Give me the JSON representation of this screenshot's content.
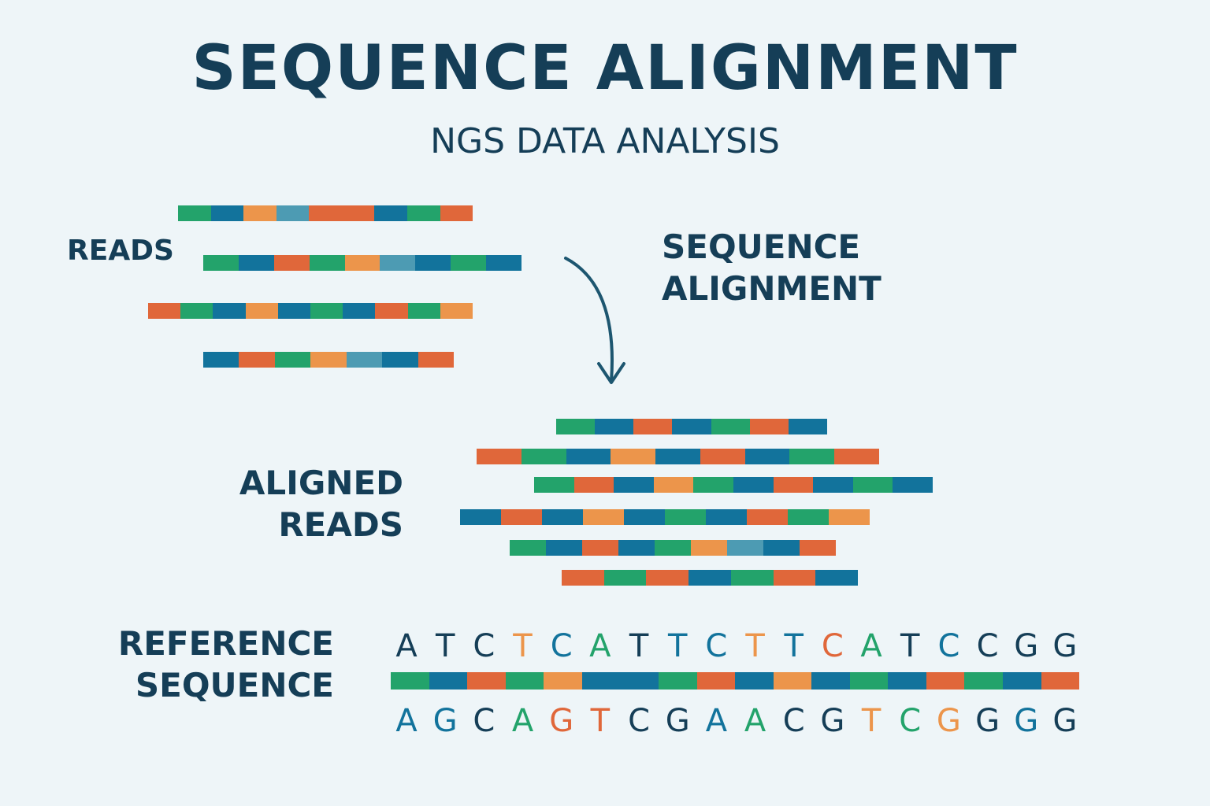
{
  "title": "SEQUENCE ALIGNMENT",
  "subtitle": "NGS DATA ANALYSIS",
  "labels": {
    "reads": "READS",
    "process_line1": "SEQUENCE",
    "process_line2": "ALIGNMENT",
    "aligned_line1": "ALIGNED",
    "aligned_line2": "READS",
    "reference_line1": "REFERENCE",
    "reference_line2": "SEQUENCE"
  },
  "colors": {
    "green": "#23a36b",
    "blue": "#12739c",
    "orange": "#e0673a",
    "light_orange": "#ec954b",
    "teal": "#4d9bb3",
    "navy": "#153e57",
    "background": "#eef5f8"
  },
  "reference_sequence": {
    "top_strand": [
      {
        "base": "A",
        "color": "navy"
      },
      {
        "base": "T",
        "color": "navy"
      },
      {
        "base": "C",
        "color": "navy"
      },
      {
        "base": "T",
        "color": "light_orange"
      },
      {
        "base": "C",
        "color": "blue"
      },
      {
        "base": "A",
        "color": "green"
      },
      {
        "base": "T",
        "color": "navy"
      },
      {
        "base": "T",
        "color": "blue"
      },
      {
        "base": "C",
        "color": "blue"
      },
      {
        "base": "T",
        "color": "light_orange"
      },
      {
        "base": "T",
        "color": "blue"
      },
      {
        "base": "C",
        "color": "orange"
      },
      {
        "base": "A",
        "color": "green"
      },
      {
        "base": "T",
        "color": "navy"
      },
      {
        "base": "C",
        "color": "blue"
      },
      {
        "base": "C",
        "color": "navy"
      },
      {
        "base": "G",
        "color": "navy"
      },
      {
        "base": "G",
        "color": "navy"
      }
    ],
    "bottom_strand": [
      {
        "base": "A",
        "color": "blue"
      },
      {
        "base": "G",
        "color": "blue"
      },
      {
        "base": "C",
        "color": "navy"
      },
      {
        "base": "A",
        "color": "green"
      },
      {
        "base": "G",
        "color": "orange"
      },
      {
        "base": "T",
        "color": "orange"
      },
      {
        "base": "C",
        "color": "navy"
      },
      {
        "base": "G",
        "color": "navy"
      },
      {
        "base": "A",
        "color": "blue"
      },
      {
        "base": "A",
        "color": "green"
      },
      {
        "base": "C",
        "color": "navy"
      },
      {
        "base": "G",
        "color": "navy"
      },
      {
        "base": "T",
        "color": "light_orange"
      },
      {
        "base": "C",
        "color": "green"
      },
      {
        "base": "G",
        "color": "light_orange"
      },
      {
        "base": "G",
        "color": "navy"
      },
      {
        "base": "G",
        "color": "blue"
      },
      {
        "base": "G",
        "color": "navy"
      }
    ],
    "bar_segments": [
      "green",
      "blue",
      "orange",
      "green",
      "light_orange",
      "blue",
      "blue",
      "green",
      "orange",
      "blue",
      "light_orange",
      "blue",
      "green",
      "blue",
      "orange",
      "green",
      "blue",
      "orange"
    ]
  },
  "unaligned_reads": [
    [
      "green",
      "blue",
      "light_orange",
      "teal",
      "orange",
      "orange",
      "blue",
      "green",
      "orange"
    ],
    [
      "green",
      "blue",
      "orange",
      "green",
      "light_orange",
      "teal",
      "blue",
      "green",
      "blue"
    ],
    [
      "orange",
      "green",
      "blue",
      "light_orange",
      "blue",
      "green",
      "blue",
      "orange",
      "green",
      "light_orange"
    ],
    [
      "blue",
      "orange",
      "green",
      "light_orange",
      "teal",
      "blue",
      "orange"
    ]
  ],
  "aligned_reads": [
    [
      "green",
      "blue",
      "orange",
      "blue",
      "green",
      "orange",
      "blue"
    ],
    [
      "orange",
      "green",
      "blue",
      "light_orange",
      "blue",
      "orange",
      "blue",
      "green",
      "orange"
    ],
    [
      "green",
      "orange",
      "blue",
      "light_orange",
      "green",
      "blue",
      "orange",
      "blue",
      "green",
      "blue"
    ],
    [
      "blue",
      "orange",
      "blue",
      "light_orange",
      "blue",
      "green",
      "blue",
      "orange",
      "green",
      "light_orange"
    ],
    [
      "green",
      "blue",
      "orange",
      "blue",
      "green",
      "light_orange",
      "teal",
      "blue",
      "orange"
    ],
    [
      "orange",
      "green",
      "orange",
      "blue",
      "green",
      "orange",
      "blue"
    ]
  ]
}
